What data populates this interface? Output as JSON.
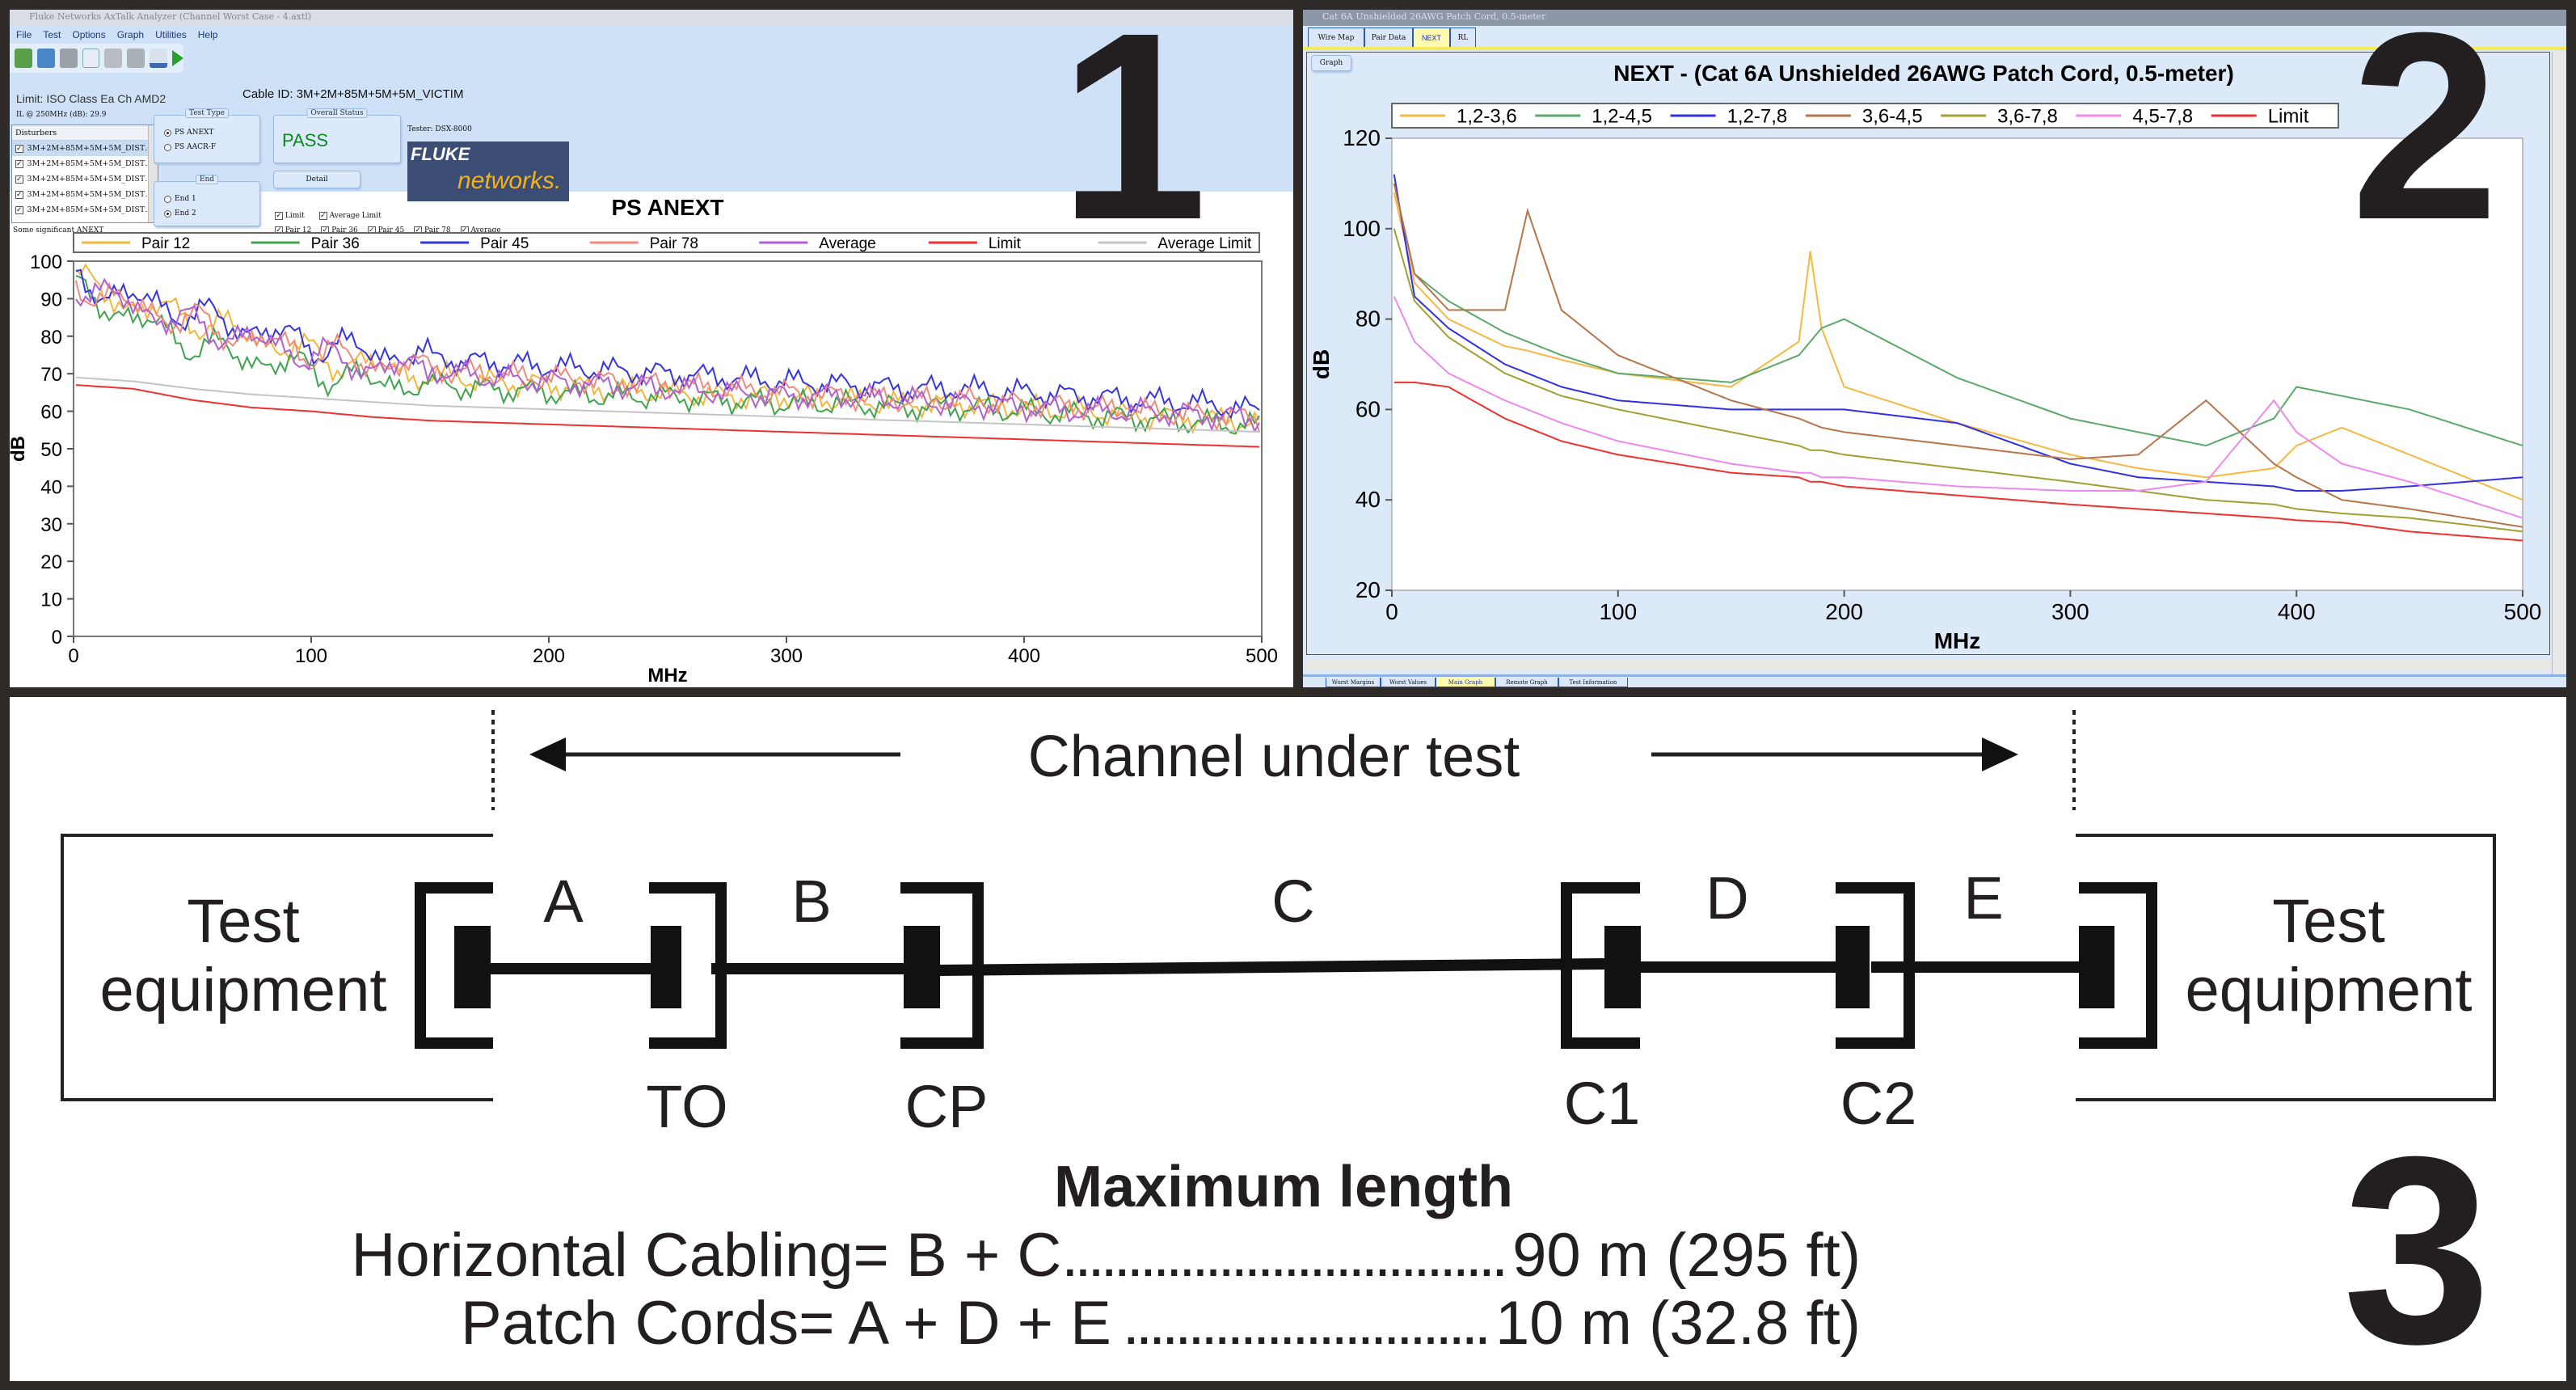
{
  "panel1": {
    "window_title": "Fluke Networks AxTalk Analyzer (Channel Worst Case - 4.axtl)",
    "menu": [
      "File",
      "Test",
      "Options",
      "Graph",
      "Utilities",
      "Help"
    ],
    "toolbar_icons": [
      "new-icon",
      "open-folder-icon",
      "save-icon",
      "pdf-icon",
      "print-icon",
      "print-preview-icon",
      "chart-icon",
      "run-icon"
    ],
    "limit_text": "Limit: ISO Class Ea Ch AMD2",
    "il_text": "IL @ 250MHz (dB): 29.9",
    "disturbers_header": "Disturbers",
    "disturbers": [
      "3M+2M+85M+5M+5M_DIST…",
      "3M+2M+85M+5M+5M_DIST…",
      "3M+2M+85M+5M+5M_DIST…",
      "3M+2M+85M+5M+5M_DIST…",
      "3M+2M+85M+5M+5M_DIST…"
    ],
    "note": "Some significant ANEXT",
    "test_type": {
      "label": "Test Type",
      "options": [
        "PS ANEXT",
        "PS AACR-F"
      ],
      "selected": "PS ANEXT"
    },
    "end": {
      "label": "End",
      "options": [
        "End 1",
        "End 2"
      ],
      "selected": "End 2"
    },
    "cable_id": "Cable ID: 3M+2M+85M+5M+5M_VICTIM",
    "overall_status": {
      "label": "Overall Status",
      "value": "PASS",
      "color": "#0a8a1a"
    },
    "detail_button": "Detail",
    "tester": "Tester: DSX-8000",
    "logo": {
      "line1": "FLUKE",
      "line2": "networks."
    },
    "checkboxes": [
      {
        "label": "Limit",
        "checked": true
      },
      {
        "label": "Average Limit",
        "checked": true
      },
      {
        "label": "Pair 12",
        "checked": true
      },
      {
        "label": "Pair 36",
        "checked": true
      },
      {
        "label": "Pair 45",
        "checked": true
      },
      {
        "label": "Pair 78",
        "checked": true
      },
      {
        "label": "Average",
        "checked": true
      }
    ],
    "big_number": "1"
  },
  "panel2": {
    "window_title": "Cat 6A Unshielded 26AWG Patch Cord, 0.5-meter",
    "tabs": [
      "Wire Map",
      "Pair Data",
      "NEXT",
      "RL"
    ],
    "active_tab": "NEXT",
    "graph_button": "Graph",
    "bottom_tabs": [
      "Worst Margins",
      "Worst Values",
      "Main Graph",
      "Remote Graph",
      "Test Information"
    ],
    "active_bottom_tab": "Main Graph",
    "big_number": "2"
  },
  "chart_data": [
    {
      "type": "line",
      "title": "PS ANEXT",
      "xlabel": "MHz",
      "ylabel": "dB",
      "xlim": [
        0,
        500
      ],
      "ylim": [
        0,
        100
      ],
      "xticks": [
        0,
        100,
        200,
        300,
        400,
        500
      ],
      "yticks": [
        0,
        10,
        20,
        30,
        40,
        50,
        60,
        70,
        80,
        90,
        100
      ],
      "grid": false,
      "legend": "top",
      "x": [
        1,
        25,
        50,
        75,
        100,
        125,
        150,
        175,
        200,
        225,
        250,
        275,
        300,
        325,
        350,
        375,
        400,
        425,
        450,
        475,
        500
      ],
      "series": [
        {
          "name": "Pair 12",
          "color": "#f2b63c",
          "values": [
            95,
            88,
            85,
            80,
            75,
            72,
            70,
            68,
            67,
            66,
            65,
            64,
            64,
            63,
            62,
            62,
            61,
            60,
            59,
            58,
            57
          ]
        },
        {
          "name": "Pair 36",
          "color": "#3fa34d",
          "values": [
            92,
            85,
            78,
            74,
            71,
            68,
            67,
            66,
            65,
            64,
            64,
            63,
            62,
            62,
            61,
            61,
            60,
            59,
            58,
            57,
            56
          ]
        },
        {
          "name": "Pair 45",
          "color": "#3535e0",
          "values": [
            95,
            90,
            86,
            82,
            78,
            76,
            74,
            73,
            72,
            71,
            70,
            69,
            68,
            67,
            66,
            66,
            65,
            64,
            63,
            62,
            60
          ]
        },
        {
          "name": "Pair 78",
          "color": "#f08a7a",
          "values": [
            94,
            88,
            84,
            79,
            76,
            73,
            71,
            70,
            69,
            68,
            67,
            66,
            65,
            64,
            63,
            63,
            62,
            61,
            60,
            59,
            58
          ]
        },
        {
          "name": "Average",
          "color": "#b05fd0",
          "values": [
            94,
            88,
            83,
            79,
            75,
            72,
            71,
            69,
            68,
            67,
            66,
            65,
            64,
            64,
            63,
            62,
            61,
            60,
            60,
            59,
            58
          ]
        },
        {
          "name": "Limit",
          "color": "#f03030",
          "values": [
            67,
            66,
            63,
            61,
            60,
            58.5,
            57.5,
            57,
            56.5,
            56,
            55.5,
            55,
            54.5,
            54,
            53.5,
            53,
            52.5,
            52,
            51.5,
            51,
            50.5
          ]
        },
        {
          "name": "Average Limit",
          "color": "#c4c4c4",
          "values": [
            69,
            68,
            66,
            64.5,
            63.5,
            62.5,
            61.5,
            61,
            60.5,
            60,
            59.5,
            59,
            58.5,
            58,
            57.5,
            57,
            56.5,
            56,
            55.5,
            55,
            54.5
          ]
        }
      ]
    },
    {
      "type": "line",
      "title": "NEXT - (Cat 6A Unshielded 26AWG Patch Cord, 0.5-meter)",
      "xlabel": "MHz",
      "ylabel": "dB",
      "xlim": [
        0,
        500
      ],
      "ylim": [
        20,
        120
      ],
      "xticks": [
        0,
        100,
        200,
        300,
        400,
        500
      ],
      "yticks": [
        20,
        40,
        60,
        80,
        100,
        120
      ],
      "grid": false,
      "legend": "top",
      "x": [
        1,
        10,
        25,
        50,
        60,
        75,
        100,
        150,
        180,
        185,
        190,
        200,
        250,
        300,
        330,
        360,
        390,
        400,
        420,
        450,
        500
      ],
      "series": [
        {
          "name": "1,2-3,6",
          "color": "#f5b840",
          "values": [
            108,
            88,
            80,
            74,
            73,
            71,
            68,
            65,
            75,
            95,
            78,
            65,
            57,
            50,
            47,
            45,
            47,
            52,
            56,
            50,
            40
          ]
        },
        {
          "name": "1,2-4,5",
          "color": "#5aa86a",
          "values": [
            110,
            90,
            84,
            77,
            75,
            72,
            68,
            66,
            72,
            75,
            78,
            80,
            67,
            58,
            55,
            52,
            58,
            65,
            63,
            60,
            52
          ]
        },
        {
          "name": "1,2-7,8",
          "color": "#2f2fe8",
          "values": [
            112,
            85,
            78,
            70,
            68,
            65,
            62,
            60,
            60,
            60,
            60,
            60,
            57,
            48,
            45,
            44,
            43,
            42,
            42,
            43,
            45
          ]
        },
        {
          "name": "3,6-4,5",
          "color": "#b5744a",
          "values": [
            110,
            90,
            82,
            82,
            104,
            82,
            72,
            62,
            58,
            57,
            56,
            55,
            52,
            49,
            50,
            62,
            48,
            45,
            40,
            38,
            34
          ]
        },
        {
          "name": "3,6-7,8",
          "color": "#a0a030",
          "values": [
            100,
            84,
            76,
            68,
            66,
            63,
            60,
            55,
            52,
            51,
            51,
            50,
            47,
            44,
            42,
            40,
            39,
            38,
            37,
            36,
            33
          ]
        },
        {
          "name": "4,5-7,8",
          "color": "#ee88ee",
          "values": [
            85,
            75,
            68,
            62,
            60,
            57,
            53,
            48,
            46,
            46,
            45,
            45,
            43,
            42,
            42,
            44,
            62,
            55,
            48,
            44,
            36
          ]
        },
        {
          "name": "Limit",
          "color": "#f03030",
          "values": [
            66,
            66,
            65,
            58,
            56,
            53,
            50,
            46,
            45,
            44,
            44,
            43,
            41,
            39,
            38,
            37,
            36,
            35.5,
            35,
            33,
            31
          ]
        }
      ]
    }
  ],
  "panel3": {
    "channel_label": "Channel under test",
    "left_equipment": [
      "Test",
      "equipment"
    ],
    "right_equipment": [
      "Test",
      "equipment"
    ],
    "segments": [
      "A",
      "B",
      "C",
      "D",
      "E"
    ],
    "connectors": [
      "TO",
      "CP",
      "C1",
      "C2"
    ],
    "max_length_title": "Maximum length",
    "rows": [
      {
        "label": "Horizontal Cabling= B + C",
        "dots": "..................................",
        "value": "90 m (295 ft)"
      },
      {
        "label": "Patch Cords= A + D + E",
        "dots": "............................",
        "value": "10 m (32.8 ft)"
      }
    ],
    "big_number": "3"
  }
}
